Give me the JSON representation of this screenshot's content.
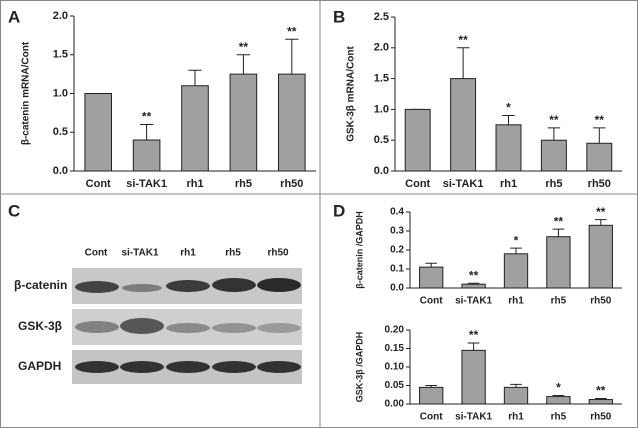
{
  "chart_data": [
    {
      "type": "bar",
      "label": "A",
      "ylabel": "β-catenin mRNA/Cont",
      "categories": [
        "Cont",
        "si-TAK1",
        "rh1",
        "rh5",
        "rh50"
      ],
      "values": [
        1.0,
        0.4,
        1.1,
        1.25,
        1.25
      ],
      "errors": [
        0,
        0.2,
        0.2,
        0.25,
        0.45
      ],
      "annotations": [
        null,
        "**",
        null,
        "**",
        "**"
      ],
      "color": "#a0a0a0",
      "ylim": [
        0,
        2.0
      ],
      "yticks": [
        {
          "value": 0,
          "label": "0.0"
        },
        {
          "value": 0.5,
          "label": "0.5"
        },
        {
          "value": 1,
          "label": "1.0"
        },
        {
          "value": 1.5,
          "label": "1.5"
        },
        {
          "value": 2,
          "label": "2.0"
        }
      ]
    },
    {
      "type": "bar",
      "label": "B",
      "ylabel": "GSK-3β mRNA/Cont",
      "categories": [
        "Cont",
        "si-TAK1",
        "rh1",
        "rh5",
        "rh50"
      ],
      "values": [
        1.0,
        1.5,
        0.75,
        0.5,
        0.45
      ],
      "errors": [
        0,
        0.5,
        0.15,
        0.2,
        0.25
      ],
      "annotations": [
        null,
        "**",
        "*",
        "**",
        "**"
      ],
      "color": "#a0a0a0",
      "ylim": [
        0,
        2.5
      ],
      "yticks": [
        {
          "value": 0,
          "label": "0.0"
        },
        {
          "value": 0.5,
          "label": "0.5"
        },
        {
          "value": 1,
          "label": "1.0"
        },
        {
          "value": 1.5,
          "label": "1.5"
        },
        {
          "value": 2,
          "label": "2.0"
        },
        {
          "value": 2.5,
          "label": "2.5"
        }
      ]
    },
    {
      "type": "bar",
      "label": "D",
      "ylabel": "β-catenin /GAPDH",
      "categories": [
        "Cont",
        "si-TAK1",
        "rh1",
        "rh5",
        "rh50"
      ],
      "values": [
        0.11,
        0.02,
        0.18,
        0.27,
        0.33
      ],
      "errors": [
        0.02,
        0.005,
        0.03,
        0.04,
        0.03
      ],
      "annotations": [
        null,
        "**",
        "*",
        "**",
        "**"
      ],
      "color": "#a0a0a0",
      "ylim": [
        0,
        0.4
      ],
      "yticks": [
        {
          "value": 0,
          "label": "0.0"
        },
        0.1,
        0.2,
        0.3,
        0.4
      ]
    },
    {
      "type": "bar",
      "ylabel": "GSK-3β /GAPDH",
      "categories": [
        "Cont",
        "si-TAK1",
        "rh1",
        "rh5",
        "rh50"
      ],
      "values": [
        0.045,
        0.145,
        0.045,
        0.02,
        0.012
      ],
      "errors": [
        0.005,
        0.02,
        0.008,
        0.003,
        0.003
      ],
      "annotations": [
        null,
        "**",
        null,
        "*",
        "**"
      ],
      "color": "#a0a0a0",
      "ylim": [
        0,
        0.2
      ],
      "yticks": [
        {
          "value": 0,
          "label": "0.00"
        },
        0.05,
        {
          "value": 0.1,
          "label": "0.10"
        },
        0.15,
        {
          "value": 0.2,
          "label": "0.20"
        }
      ]
    }
  ],
  "blot": {
    "label": "C",
    "lanes": [
      "Cont",
      "si-TAK1",
      "rh1",
      "rh5",
      "rh50"
    ],
    "rows": [
      "β-catenin",
      "GSK-3β",
      "GAPDH"
    ]
  }
}
